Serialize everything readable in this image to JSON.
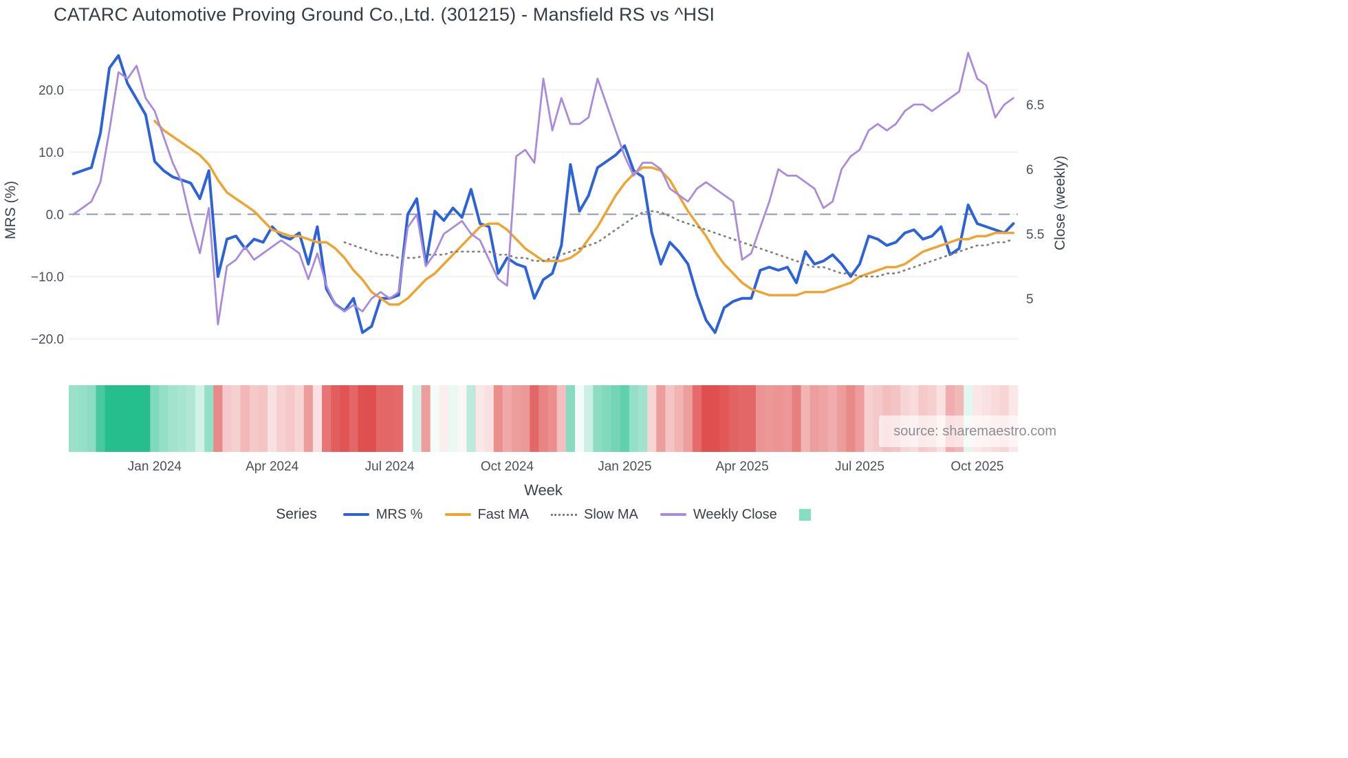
{
  "header": {
    "title": "CATARC Automotive Proving Ground Co.,Ltd. (301215) - Mansfield RS vs ^HSI"
  },
  "watermark": {
    "text": "source: sharemaestro.com"
  },
  "chart_data": {
    "type": "line",
    "title": "CATARC Automotive Proving Ground Co.,Ltd. (301215) - Mansfield RS vs ^HSI",
    "xlabel": "Week",
    "legend": {
      "title": "Series"
    },
    "zero_line": 0,
    "left_axis": {
      "label": "MRS (%)",
      "ticks": [
        {
          "v": 20,
          "label": "20.0"
        },
        {
          "v": 10,
          "label": "10.0"
        },
        {
          "v": 0,
          "label": "0.0"
        },
        {
          "v": -10,
          "label": "−10.0"
        },
        {
          "v": -20,
          "label": "−20.0"
        }
      ],
      "range": [
        -24,
        27
      ]
    },
    "right_axis": {
      "label": "Close (weekly)",
      "ticks": [
        {
          "v": 6.5,
          "label": "6.5"
        },
        {
          "v": 6,
          "label": "6"
        },
        {
          "v": 5.5,
          "label": "5.5"
        },
        {
          "v": 5,
          "label": "5"
        }
      ],
      "range": [
        4.6,
        7.0
      ]
    },
    "x_ticks": [
      {
        "index": 9,
        "label": "Jan 2024"
      },
      {
        "index": 22,
        "label": "Apr 2024"
      },
      {
        "index": 35,
        "label": "Jul 2024"
      },
      {
        "index": 48,
        "label": "Oct 2024"
      },
      {
        "index": 61,
        "label": "Jan 2025"
      },
      {
        "index": 74,
        "label": "Apr 2025"
      },
      {
        "index": 87,
        "label": "Jul 2025"
      },
      {
        "index": 100,
        "label": "Oct 2025"
      }
    ],
    "series": [
      {
        "name": "MRS %",
        "axis": "left",
        "color": "#2e63d8",
        "style": "solid",
        "values": [
          6.5,
          7,
          7.5,
          13,
          23.5,
          25.5,
          21,
          18.5,
          16,
          8.5,
          7,
          6,
          5.5,
          5,
          2.5,
          7,
          -10,
          -4,
          -3.5,
          -5.5,
          -4,
          -4.5,
          -2,
          -3.5,
          -4,
          -3,
          -8,
          -2,
          -12,
          -14.5,
          -15.5,
          -13.5,
          -19,
          -18,
          -13.5,
          -13.5,
          -13,
          0,
          2.5,
          -8,
          0.5,
          -1,
          1,
          -0.5,
          4,
          -1.5,
          -2,
          -9.5,
          -7,
          -8,
          -8.5,
          -13.5,
          -10.5,
          -9.5,
          -5,
          8,
          0.5,
          3,
          7.5,
          8.5,
          9.5,
          11,
          7,
          6,
          -3,
          -8,
          -4.5,
          -6,
          -8,
          -13,
          -17,
          -19,
          -15,
          -14,
          -13.5,
          -13.5,
          -9,
          -8.5,
          -9,
          -8.5,
          -11,
          -6,
          -8,
          -7.5,
          -6.5,
          -8,
          -10,
          -8,
          -3.5,
          -4,
          -5,
          -4.5,
          -3,
          -2.5,
          -4,
          -3.5,
          -2,
          -6.5,
          -5.5,
          1.5,
          -1.5,
          -2,
          -2.5,
          -3,
          -1.5
        ]
      },
      {
        "name": "Fast MA",
        "axis": "left",
        "color": "#eda432",
        "style": "solid",
        "values": [
          null,
          null,
          null,
          null,
          null,
          null,
          null,
          null,
          null,
          15,
          13.5,
          12.5,
          11.5,
          10.5,
          9.5,
          8,
          5.5,
          3.5,
          2.5,
          1.5,
          0.5,
          -1,
          -2.5,
          -3,
          -3.5,
          -3.5,
          -4,
          -4.5,
          -4.5,
          -5.5,
          -7,
          -9,
          -10.5,
          -12.5,
          -13.5,
          -14.5,
          -14.5,
          -13.5,
          -12,
          -10.5,
          -9.5,
          -8,
          -6.5,
          -5,
          -3.5,
          -2,
          -1.5,
          -1.5,
          -2.5,
          -4,
          -5.5,
          -6.5,
          -7.5,
          -7.5,
          -7.5,
          -7,
          -6,
          -4,
          -2,
          0.5,
          3,
          5,
          6.5,
          7.5,
          7.5,
          7,
          5.5,
          3,
          0.5,
          -1.5,
          -3.5,
          -6,
          -8,
          -9.5,
          -11,
          -12,
          -12.5,
          -13,
          -13,
          -13,
          -13,
          -12.5,
          -12.5,
          -12.5,
          -12,
          -11.5,
          -11,
          -10,
          -9.5,
          -9,
          -8.5,
          -8.5,
          -8,
          -7,
          -6,
          -5.5,
          -5,
          -4.5,
          -4,
          -4,
          -3.5,
          -3.5,
          -3,
          -3,
          -3
        ]
      },
      {
        "name": "Slow MA",
        "axis": "left",
        "color": "#7f7f7f",
        "style": "dotted",
        "values": [
          null,
          null,
          null,
          null,
          null,
          null,
          null,
          null,
          null,
          null,
          null,
          null,
          null,
          null,
          null,
          null,
          null,
          null,
          null,
          null,
          null,
          null,
          null,
          null,
          null,
          null,
          null,
          null,
          null,
          null,
          -4.5,
          -5,
          -5.5,
          -6,
          -6.5,
          -6.5,
          -7,
          -7,
          -7,
          -6.5,
          -6.5,
          -6.5,
          -6,
          -6,
          -6,
          -6,
          -6,
          -6.5,
          -6.5,
          -7,
          -7,
          -7.5,
          -7.5,
          -7,
          -6.5,
          -6,
          -5.5,
          -5,
          -4.5,
          -3.5,
          -2.5,
          -1.5,
          -0.5,
          0.3,
          0.5,
          0.3,
          -0.3,
          -1,
          -1.5,
          -2,
          -2.5,
          -3,
          -3.5,
          -4,
          -4.5,
          -5,
          -5.5,
          -6,
          -6.5,
          -7,
          -7.5,
          -8,
          -8.5,
          -8.5,
          -9,
          -9.5,
          -9.5,
          -10,
          -10,
          -10,
          -9.5,
          -9.5,
          -9,
          -8.5,
          -8,
          -7.5,
          -7,
          -6.5,
          -6,
          -5.5,
          -5,
          -5,
          -4.5,
          -4.5,
          -4
        ]
      },
      {
        "name": "Weekly Close",
        "axis": "right",
        "color": "#a98bdc",
        "style": "solid",
        "values": [
          5.65,
          5.7,
          5.75,
          5.9,
          6.3,
          6.75,
          6.7,
          6.8,
          6.55,
          6.45,
          6.25,
          6.05,
          5.9,
          5.6,
          5.35,
          5.7,
          4.8,
          5.25,
          5.3,
          5.4,
          5.3,
          5.35,
          5.4,
          5.45,
          5.4,
          5.35,
          5.15,
          5.35,
          5.1,
          4.95,
          4.9,
          4.95,
          4.9,
          5.0,
          5.05,
          5.0,
          5.05,
          5.55,
          5.65,
          5.25,
          5.35,
          5.5,
          5.55,
          5.6,
          5.5,
          5.45,
          5.3,
          5.15,
          5.1,
          6.1,
          6.15,
          6.05,
          6.7,
          6.3,
          6.55,
          6.35,
          6.35,
          6.4,
          6.7,
          6.5,
          6.3,
          6.1,
          5.95,
          6.05,
          6.05,
          6.0,
          5.85,
          5.8,
          5.75,
          5.85,
          5.9,
          5.85,
          5.8,
          5.75,
          5.3,
          5.35,
          5.55,
          5.75,
          6.0,
          5.95,
          5.95,
          5.9,
          5.85,
          5.7,
          5.75,
          6.0,
          6.1,
          6.15,
          6.3,
          6.35,
          6.3,
          6.35,
          6.45,
          6.5,
          6.5,
          6.45,
          6.5,
          6.55,
          6.6,
          6.9,
          6.7,
          6.65,
          6.4,
          6.5,
          6.55
        ]
      }
    ],
    "heatmap": {
      "derived_from": "MRS %",
      "positive_color": "#26be8d",
      "negative_color": "#e04f4f",
      "max_abs": 16,
      "legend_swatch_color": "#85dfbf"
    }
  }
}
